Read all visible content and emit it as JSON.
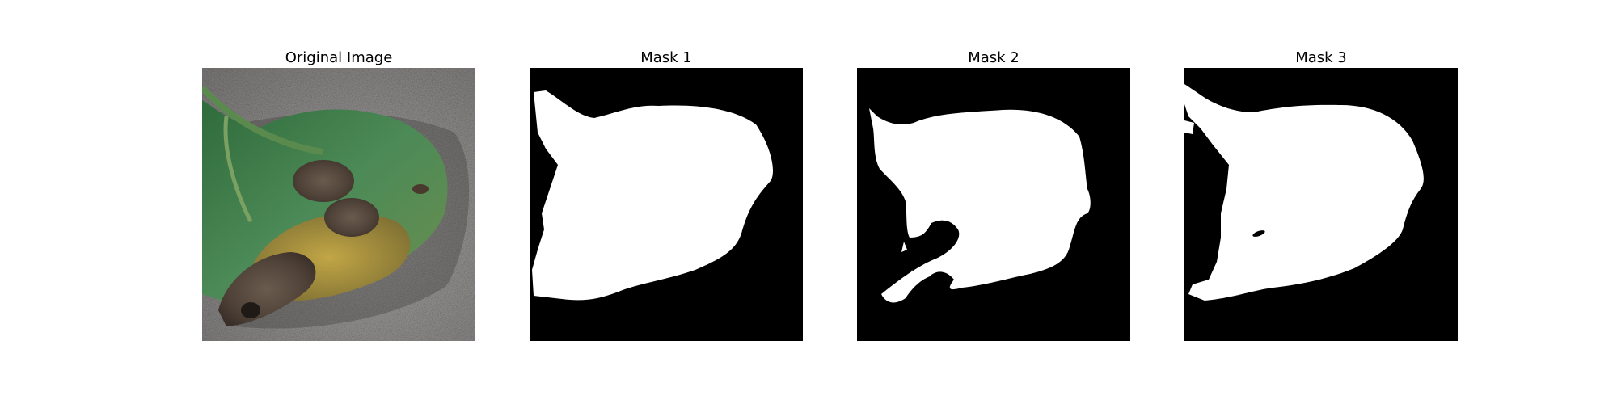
{
  "panels": [
    {
      "title": "Original Image"
    },
    {
      "title": "Mask 1"
    },
    {
      "title": "Mask 2"
    },
    {
      "title": "Mask 3"
    }
  ],
  "colors": {
    "background": "#ffffff",
    "mask_background": "#000000",
    "mask_foreground": "#ffffff",
    "leaf_green": "#3f7a48",
    "lesion_brown": "#5a4a3c",
    "lesion_yellow": "#a58f3c",
    "surface_gray": "#9a9896"
  }
}
